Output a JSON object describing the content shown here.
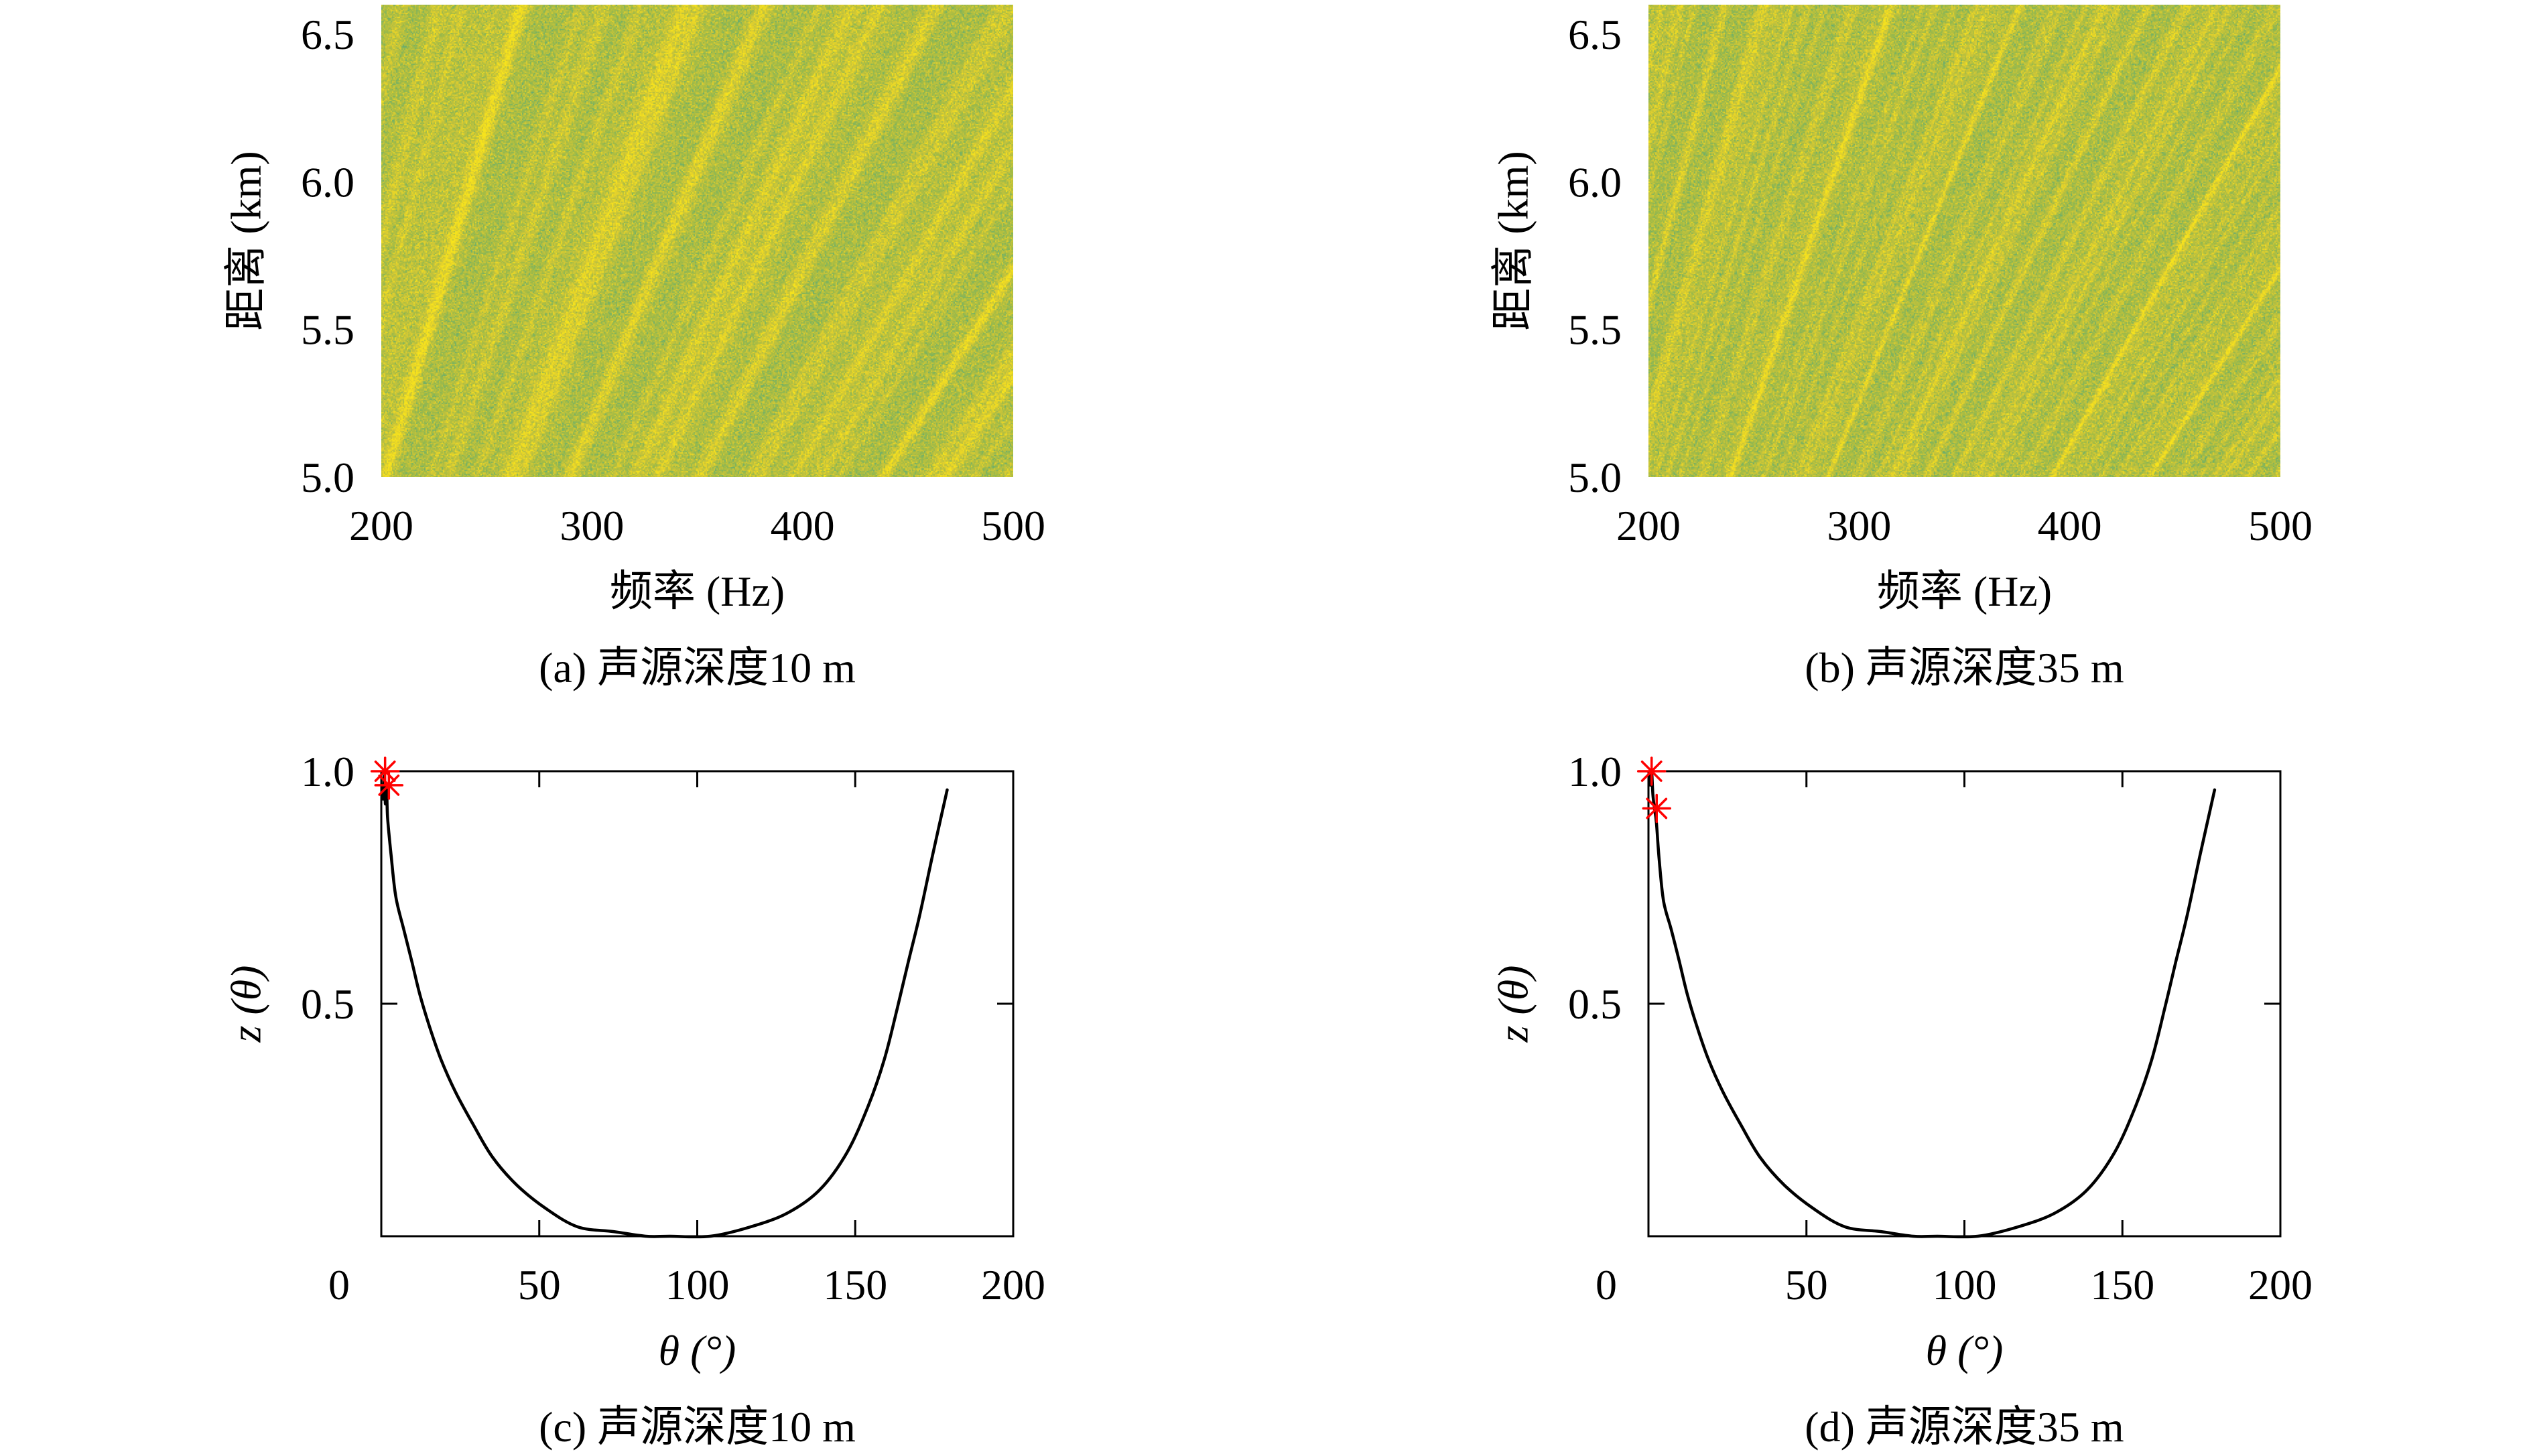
{
  "chart_data": [
    {
      "type": "heatmap",
      "caption": "(a) 声源深度10 m",
      "xlabel": "频率 (Hz)",
      "ylabel": "距离 (km)",
      "xlim": [
        200,
        500
      ],
      "ylim": [
        5.0,
        6.6
      ],
      "xticks": [
        200,
        300,
        400,
        500
      ],
      "xticklabels": [
        "200",
        "300",
        "400",
        "500"
      ],
      "yticks": [
        5.0,
        5.5,
        6.0,
        6.5
      ],
      "yticklabels": [
        "5.0",
        "5.5",
        "6.0",
        "6.5"
      ],
      "grid": false,
      "colormap": [
        "#3f9e96",
        "#73b166",
        "#a2bb46",
        "#c8c43a",
        "#e6d32a",
        "#f7e41c"
      ]
    },
    {
      "type": "heatmap",
      "caption": "(b) 声源深度35 m",
      "xlabel": "频率 (Hz)",
      "ylabel": "距离 (km)",
      "xlim": [
        200,
        500
      ],
      "ylim": [
        5.0,
        6.6
      ],
      "xticks": [
        200,
        300,
        400,
        500
      ],
      "xticklabels": [
        "200",
        "300",
        "400",
        "500"
      ],
      "yticks": [
        5.0,
        5.5,
        6.0,
        6.5
      ],
      "yticklabels": [
        "5.0",
        "5.5",
        "6.0",
        "6.5"
      ],
      "grid": false,
      "colormap": [
        "#3f9e96",
        "#73b166",
        "#a2bb46",
        "#c8c43a",
        "#e6d32a",
        "#f7e41c"
      ]
    },
    {
      "type": "line",
      "caption": "(c) 声源深度10 m",
      "xlabel": "θ (°)",
      "ylabel": "z (θ)",
      "xlim": [
        0,
        200
      ],
      "ylim": [
        0,
        1.0
      ],
      "xticks": [
        0,
        50,
        100,
        150,
        200
      ],
      "xticklabels": [
        "0",
        "50",
        "100",
        "150",
        "200"
      ],
      "yticks": [
        0.5,
        1.0
      ],
      "yticklabels": [
        "0.5",
        "1.0"
      ],
      "grid": false,
      "series": [
        {
          "color": "#000000",
          "x": [
            0.6,
            1.0,
            1.3,
            1.7,
            2.0,
            3.1,
            4.6,
            7.1,
            9.7,
            12.2,
            15.3,
            18.9,
            23.5,
            29.1,
            35.2,
            42.9,
            52.0,
            62.2,
            73.5,
            83.7,
            91.3,
            104.1,
            116.8,
            128.6,
            138.8,
            147.4,
            154.1,
            159.2,
            163.3,
            166.8,
            170.4,
            174.5,
            179.1
          ],
          "y": [
            0.94,
            0.99,
            0.93,
            0.96,
            0.9,
            0.82,
            0.73,
            0.66,
            0.59,
            0.52,
            0.45,
            0.38,
            0.31,
            0.24,
            0.17,
            0.11,
            0.06,
            0.02,
            0.01,
            0.0,
            0.0,
            0.0,
            0.02,
            0.05,
            0.1,
            0.18,
            0.28,
            0.38,
            0.49,
            0.59,
            0.69,
            0.82,
            0.96
          ]
        }
      ],
      "markers": {
        "color": "#ff0000",
        "x": [
          1.2,
          2.4
        ],
        "y": [
          1.0,
          0.97
        ]
      }
    },
    {
      "type": "line",
      "caption": "(d) 声源深度35 m",
      "xlabel": "θ (°)",
      "ylabel": "z (θ)",
      "xlim": [
        0,
        200
      ],
      "ylim": [
        0,
        1.0
      ],
      "xticks": [
        0,
        50,
        100,
        150,
        200
      ],
      "xticklabels": [
        "0",
        "50",
        "100",
        "150",
        "200"
      ],
      "yticks": [
        0.5,
        1.0
      ],
      "yticklabels": [
        "0.5",
        "1.0"
      ],
      "grid": false,
      "series": [
        {
          "color": "#000000",
          "x": [
            0.6,
            1.0,
            1.4,
            1.9,
            2.5,
            3.4,
            4.8,
            7.2,
            9.8,
            12.3,
            15.4,
            19.0,
            23.6,
            29.2,
            35.3,
            43.0,
            52.1,
            62.3,
            73.6,
            83.8,
            91.4,
            104.2,
            116.9,
            128.7,
            138.9,
            147.5,
            154.2,
            159.3,
            163.4,
            166.9,
            170.5,
            174.6,
            179.2
          ],
          "y": [
            0.97,
            1.0,
            0.95,
            0.92,
            0.89,
            0.81,
            0.72,
            0.66,
            0.59,
            0.52,
            0.45,
            0.38,
            0.31,
            0.24,
            0.17,
            0.11,
            0.06,
            0.02,
            0.01,
            0.0,
            0.0,
            0.0,
            0.02,
            0.05,
            0.1,
            0.18,
            0.28,
            0.38,
            0.49,
            0.59,
            0.69,
            0.82,
            0.96
          ]
        }
      ],
      "markers": {
        "color": "#ff0000",
        "x": [
          1.0,
          2.6
        ],
        "y": [
          1.0,
          0.92
        ]
      }
    }
  ]
}
